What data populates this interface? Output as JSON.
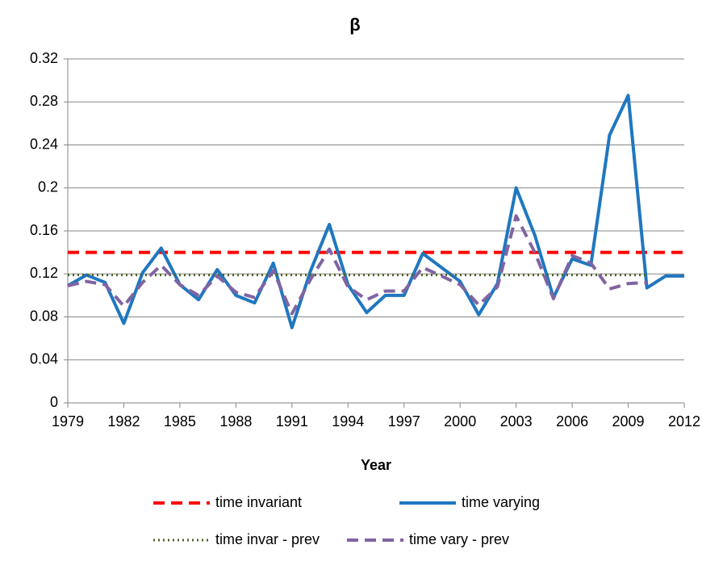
{
  "chart_data": {
    "type": "line",
    "title": "β",
    "x_label": "Year",
    "x": [
      1979,
      1980,
      1981,
      1982,
      1983,
      1984,
      1985,
      1986,
      1987,
      1988,
      1989,
      1990,
      1991,
      1992,
      1993,
      1994,
      1995,
      1996,
      1997,
      1998,
      1999,
      2000,
      2001,
      2002,
      2003,
      2004,
      2005,
      2006,
      2007,
      2008,
      2009,
      2010,
      2011,
      2012
    ],
    "xlim": [
      1979,
      2012
    ],
    "xticks": [
      1979,
      1982,
      1985,
      1988,
      1991,
      1994,
      1997,
      2000,
      2003,
      2006,
      2009,
      2012
    ],
    "ylim": [
      0,
      0.32
    ],
    "yticks": [
      0,
      0.04,
      0.08,
      0.12,
      0.16,
      0.2,
      0.24,
      0.28,
      0.32
    ],
    "grid": true,
    "series": [
      {
        "name": "time invariant",
        "color": "#ff0000",
        "dash": "dashed",
        "values": [
          0.14,
          0.14,
          0.14,
          0.14,
          0.14,
          0.14,
          0.14,
          0.14,
          0.14,
          0.14,
          0.14,
          0.14,
          0.14,
          0.14,
          0.14,
          0.14,
          0.14,
          0.14,
          0.14,
          0.14,
          0.14,
          0.14,
          0.14,
          0.14,
          0.14,
          0.14,
          0.14,
          0.14,
          0.14,
          0.14,
          0.14,
          0.14,
          0.14,
          0.14
        ]
      },
      {
        "name": "time varying",
        "color": "#1f77c0",
        "dash": "solid",
        "values": [
          0.109,
          0.119,
          0.112,
          0.074,
          0.121,
          0.144,
          0.11,
          0.096,
          0.124,
          0.1,
          0.093,
          0.13,
          0.07,
          0.123,
          0.166,
          0.11,
          0.084,
          0.1,
          0.1,
          0.139,
          0.126,
          0.113,
          0.082,
          0.111,
          0.2,
          0.156,
          0.098,
          0.134,
          0.128,
          0.249,
          0.286,
          0.107,
          0.118,
          0.118
        ]
      },
      {
        "name": "time invar - prev",
        "color": "#4f6228",
        "dash": "dotted",
        "values": [
          0.119,
          0.119,
          0.119,
          0.119,
          0.119,
          0.119,
          0.119,
          0.119,
          0.119,
          0.119,
          0.119,
          0.119,
          0.119,
          0.119,
          0.119,
          0.119,
          0.119,
          0.119,
          0.119,
          0.119,
          0.119,
          0.119,
          0.119,
          0.119,
          0.119,
          0.119,
          0.119,
          0.119,
          0.119,
          0.119,
          0.119,
          0.119,
          null,
          null
        ]
      },
      {
        "name": "time vary - prev",
        "color": "#8064a2",
        "dash": "dashed",
        "values": [
          0.109,
          0.113,
          0.11,
          0.09,
          0.112,
          0.128,
          0.11,
          0.1,
          0.118,
          0.103,
          0.098,
          0.123,
          0.083,
          0.115,
          0.143,
          0.108,
          0.096,
          0.104,
          0.104,
          0.126,
          0.118,
          0.11,
          0.091,
          0.108,
          0.174,
          0.14,
          0.097,
          0.137,
          0.13,
          0.106,
          0.111,
          0.112,
          null,
          null
        ]
      }
    ]
  }
}
